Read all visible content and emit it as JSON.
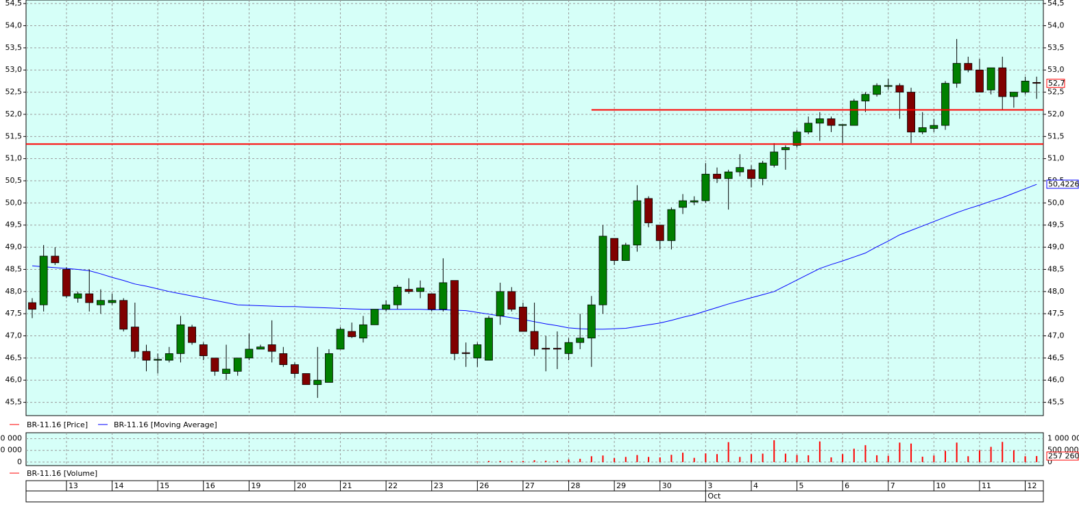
{
  "chart_data": {
    "type": "candlestick",
    "up_color": "#008000",
    "down_color": "#800000",
    "ylim": [
      45.2,
      54.58
    ],
    "yticks": [
      {
        "value": 45.5,
        "label": "45,5"
      },
      {
        "value": 46,
        "label": "46,0"
      },
      {
        "value": 46.5,
        "label": "46,5"
      },
      {
        "value": 47,
        "label": "47,0"
      },
      {
        "value": 47.5,
        "label": "47,5"
      },
      {
        "value": 48,
        "label": "48,0"
      },
      {
        "value": 48.5,
        "label": "48,5"
      },
      {
        "value": 49,
        "label": "49,0"
      },
      {
        "value": 49.5,
        "label": "49,5"
      },
      {
        "value": 50,
        "label": "50,0"
      },
      {
        "value": 50.5,
        "label": "50,5"
      },
      {
        "value": 51,
        "label": "51,0"
      },
      {
        "value": 51.5,
        "label": "51,5"
      },
      {
        "value": 52,
        "label": "52,0"
      },
      {
        "value": 52.5,
        "label": "52,5"
      },
      {
        "value": 53,
        "label": "53,0"
      },
      {
        "value": 53.5,
        "label": "53,5"
      },
      {
        "value": 54,
        "label": "54,0"
      },
      {
        "value": 54.5,
        "label": "54,5"
      }
    ],
    "grid": true,
    "price": {
      "name": "BR-11.16 [Price]",
      "color": "#ff0000",
      "open": [
        47.75,
        47.7,
        48.8,
        48.5,
        47.85,
        47.95,
        47.7,
        47.75,
        47.8,
        47.2,
        46.65,
        46.45,
        46.45,
        46.6,
        47.2,
        46.8,
        46.5,
        46.15,
        46.2,
        46.5,
        46.7,
        46.8,
        46.6,
        46.35,
        46.15,
        45.9,
        45.95,
        46.7,
        47.1,
        46.95,
        47.25,
        47.6,
        47.7,
        48.05,
        48.0,
        47.95,
        47.6,
        48.25,
        46.62,
        46.5,
        46.45,
        47.45,
        48.0,
        47.65,
        47.1,
        46.72,
        46.72,
        46.6,
        46.85,
        46.95,
        47.7,
        49.2,
        48.7,
        49.05,
        50.1,
        49.5,
        49.15,
        49.9,
        50.02,
        50.05,
        50.65,
        50.55,
        50.7,
        50.75,
        50.55,
        50.85,
        51.2,
        51.3,
        51.6,
        51.8,
        51.9,
        51.75,
        51.75,
        52.3,
        52.45,
        52.63,
        52.65,
        52.5,
        51.6,
        51.68,
        51.75,
        52.7,
        53.15,
        53.0,
        52.55,
        53.05,
        52.4,
        52.5,
        52.72
      ],
      "high": [
        47.85,
        49.05,
        49.0,
        48.55,
        48.0,
        48.5,
        48.05,
        47.95,
        47.85,
        47.75,
        46.8,
        46.6,
        46.75,
        47.45,
        47.25,
        46.85,
        46.5,
        46.8,
        46.5,
        47.05,
        46.8,
        47.35,
        46.75,
        46.4,
        46.15,
        46.75,
        46.7,
        47.2,
        47.3,
        47.45,
        47.6,
        47.8,
        48.15,
        48.3,
        48.25,
        47.95,
        48.75,
        48.25,
        46.85,
        46.85,
        47.45,
        48.2,
        48.1,
        47.75,
        47.75,
        47.0,
        47.1,
        46.95,
        47.5,
        47.9,
        49.5,
        49.2,
        49.1,
        50.4,
        50.15,
        49.5,
        49.9,
        50.2,
        50.15,
        50.9,
        50.8,
        50.75,
        51.1,
        50.85,
        50.95,
        51.35,
        51.3,
        51.65,
        51.95,
        52.05,
        51.95,
        51.77,
        52.35,
        52.5,
        52.7,
        52.8,
        52.7,
        52.6,
        52.05,
        51.9,
        52.75,
        53.7,
        53.3,
        53.25,
        53.05,
        53.3,
        52.5,
        52.85,
        52.85
      ],
      "low": [
        47.4,
        47.55,
        48.6,
        47.85,
        47.75,
        47.55,
        47.5,
        47.7,
        47.1,
        46.5,
        46.2,
        46.15,
        46.4,
        46.4,
        46.8,
        46.45,
        46.1,
        46.0,
        46.1,
        46.45,
        46.7,
        46.4,
        46.3,
        46.05,
        45.9,
        45.6,
        45.95,
        46.7,
        46.95,
        46.85,
        47.25,
        47.55,
        47.6,
        47.95,
        47.85,
        47.55,
        47.55,
        46.45,
        46.3,
        46.3,
        46.45,
        47.25,
        47.55,
        47.1,
        46.55,
        46.2,
        46.25,
        46.45,
        46.7,
        46.3,
        47.5,
        48.6,
        48.7,
        48.9,
        49.45,
        48.95,
        48.95,
        49.75,
        49.95,
        50.0,
        50.45,
        49.85,
        50.6,
        50.35,
        50.4,
        50.8,
        50.75,
        51.25,
        51.55,
        51.4,
        51.6,
        51.35,
        51.75,
        52.05,
        52.4,
        52.55,
        51.9,
        51.35,
        51.55,
        51.6,
        51.65,
        52.6,
        52.95,
        52.5,
        52.45,
        52.1,
        52.15,
        52.45,
        52.35
      ],
      "close": [
        47.6,
        48.8,
        48.65,
        47.9,
        47.95,
        47.75,
        47.8,
        47.8,
        47.15,
        46.65,
        46.45,
        46.47,
        46.6,
        47.25,
        46.85,
        46.55,
        46.2,
        46.25,
        46.5,
        46.7,
        46.75,
        46.65,
        46.35,
        46.15,
        45.9,
        46.0,
        46.6,
        47.15,
        46.98,
        47.25,
        47.6,
        47.7,
        48.1,
        48.0,
        48.08,
        47.6,
        48.2,
        46.6,
        46.6,
        46.8,
        47.4,
        48.0,
        47.6,
        47.1,
        46.7,
        46.7,
        46.7,
        46.85,
        46.95,
        47.7,
        49.25,
        48.7,
        49.05,
        50.05,
        49.55,
        49.15,
        49.85,
        50.05,
        50.05,
        50.65,
        50.55,
        50.7,
        50.8,
        50.55,
        50.9,
        51.15,
        51.25,
        51.6,
        51.8,
        51.9,
        51.75,
        51.77,
        52.3,
        52.45,
        52.65,
        52.65,
        52.5,
        51.6,
        51.7,
        51.75,
        52.7,
        53.15,
        53.0,
        52.5,
        53.05,
        52.4,
        52.5,
        52.75,
        52.7
      ],
      "last": {
        "value": 52.7,
        "label": "52,7"
      }
    },
    "moving_average": {
      "name": "BR-11.16 [Moving Average]",
      "color": "#0000ff",
      "values": [
        48.58,
        48.56,
        48.54,
        48.52,
        48.5,
        48.47,
        48.4,
        48.32,
        48.25,
        48.17,
        48.12,
        48.06,
        48.0,
        47.95,
        47.9,
        47.85,
        47.8,
        47.75,
        47.7,
        47.69,
        47.68,
        47.67,
        47.66,
        47.66,
        47.65,
        47.64,
        47.63,
        47.62,
        47.61,
        47.6,
        47.6,
        47.6,
        47.6,
        47.6,
        47.6,
        47.59,
        47.59,
        47.58,
        47.57,
        47.53,
        47.49,
        47.45,
        47.41,
        47.37,
        47.32,
        47.27,
        47.23,
        47.18,
        47.16,
        47.15,
        47.15,
        47.16,
        47.17,
        47.21,
        47.25,
        47.29,
        47.35,
        47.42,
        47.48,
        47.56,
        47.64,
        47.72,
        47.79,
        47.86,
        47.93,
        48.0,
        48.13,
        48.26,
        48.39,
        48.52,
        48.61,
        48.69,
        48.78,
        48.87,
        49.01,
        49.14,
        49.28,
        49.38,
        49.48,
        49.58,
        49.68,
        49.78,
        49.87,
        49.95,
        50.04,
        50.12,
        50.22,
        50.32,
        50.42
      ],
      "last": {
        "value": 50.4226,
        "label": "50,4226"
      }
    },
    "levels": [
      {
        "value": 52.1,
        "start": 49,
        "color": "#ff0000"
      },
      {
        "value": 51.33,
        "color": "#ff0000"
      }
    ],
    "volume": {
      "name": "BR-11.16 [Volume]",
      "color": "#ff0000",
      "ylim": [
        -150000,
        1250000
      ],
      "yticks": [
        {
          "value": 1000000,
          "label": "1 000 000"
        },
        {
          "value": 500000,
          "label": "500 000"
        },
        0
      ],
      "values": [
        0,
        0,
        0,
        0,
        0,
        0,
        0,
        0,
        0,
        0,
        0,
        0,
        0,
        0,
        0,
        0,
        0,
        0,
        0,
        0,
        0,
        0,
        0,
        0,
        0,
        0,
        0,
        0,
        0,
        0,
        0,
        0,
        0,
        0,
        0,
        0,
        0,
        0,
        0,
        20000,
        50000,
        50000,
        40000,
        50000,
        80000,
        60000,
        60000,
        110000,
        140000,
        250000,
        280000,
        170000,
        220000,
        300000,
        220000,
        200000,
        310000,
        400000,
        180000,
        370000,
        340000,
        850000,
        220000,
        340000,
        360000,
        930000,
        360000,
        300000,
        290000,
        880000,
        200000,
        340000,
        570000,
        720000,
        290000,
        270000,
        830000,
        790000,
        230000,
        280000,
        480000,
        830000,
        250000,
        500000,
        650000,
        860000,
        500000,
        250000,
        257260
      ],
      "last": {
        "value": 257260,
        "label": "257 260"
      }
    },
    "days": [
      {
        "label": "13",
        "start": 3
      },
      {
        "label": "14",
        "start": 7
      },
      {
        "label": "15",
        "start": 11
      },
      {
        "label": "16",
        "start": 15
      },
      {
        "label": "19",
        "start": 19
      },
      {
        "label": "20",
        "start": 23
      },
      {
        "label": "21",
        "start": 27
      },
      {
        "label": "22",
        "start": 31
      },
      {
        "label": "23",
        "start": 35
      },
      {
        "label": "26",
        "start": 39
      },
      {
        "label": "27",
        "start": 43
      },
      {
        "label": "28",
        "start": 47
      },
      {
        "label": "29",
        "start": 51
      },
      {
        "label": "30",
        "start": 55
      },
      {
        "label": "3",
        "start": 59
      },
      {
        "label": "4",
        "start": 63
      },
      {
        "label": "5",
        "start": 67
      },
      {
        "label": "6",
        "start": 71
      },
      {
        "label": "7",
        "start": 75
      },
      {
        "label": "10",
        "start": 79
      },
      {
        "label": "11",
        "start": 83
      },
      {
        "label": "12",
        "start": 87
      }
    ],
    "months": [
      {
        "label": "Oct",
        "start": 59
      }
    ]
  }
}
